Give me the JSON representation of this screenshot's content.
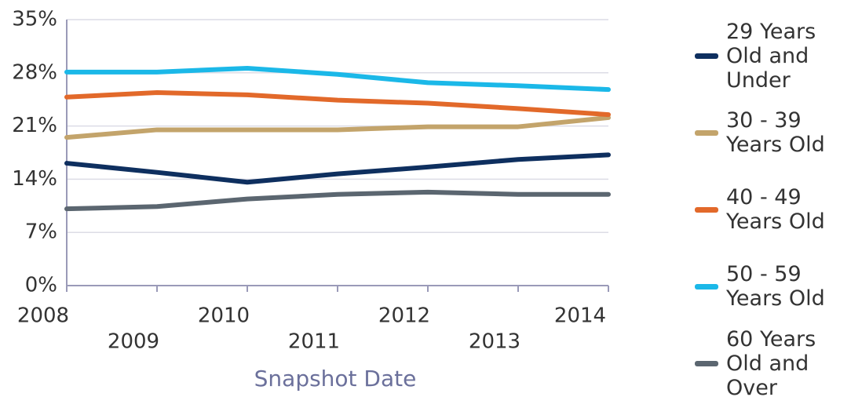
{
  "chart_data": {
    "type": "line",
    "x_label": "Snapshot Date",
    "categories": [
      "2008",
      "2009",
      "2010",
      "2011",
      "2012",
      "2013",
      "2014"
    ],
    "series": [
      {
        "name": "29 Years Old and Under",
        "color": "#0e2f5f",
        "values": [
          16.1,
          14.9,
          13.6,
          14.7,
          15.6,
          16.6,
          17.2
        ]
      },
      {
        "name": "30 - 39 Years Old",
        "color": "#c3a46b",
        "values": [
          19.5,
          20.5,
          20.5,
          20.5,
          20.9,
          20.9,
          22.1
        ]
      },
      {
        "name": "40 - 49 Years Old",
        "color": "#e2692a",
        "values": [
          24.8,
          25.4,
          25.1,
          24.4,
          24.0,
          23.3,
          22.5
        ]
      },
      {
        "name": "50 - 59 Years Old",
        "color": "#1bb8e8",
        "values": [
          28.1,
          28.1,
          28.6,
          27.8,
          26.7,
          26.3,
          25.8
        ]
      },
      {
        "name": "60 Years Old and Over",
        "color": "#5b6670",
        "values": [
          10.1,
          10.4,
          11.4,
          12.0,
          12.3,
          12.0,
          12.0
        ]
      }
    ],
    "ylim": [
      0,
      35
    ],
    "yticks": [
      {
        "value": 0,
        "label": "0%"
      },
      {
        "value": 7,
        "label": "7%"
      },
      {
        "value": 14,
        "label": "14%"
      },
      {
        "value": 21,
        "label": "21%"
      },
      {
        "value": 28,
        "label": "28%"
      },
      {
        "value": 35,
        "label": "35%"
      }
    ],
    "grid": true,
    "legend": "right"
  }
}
